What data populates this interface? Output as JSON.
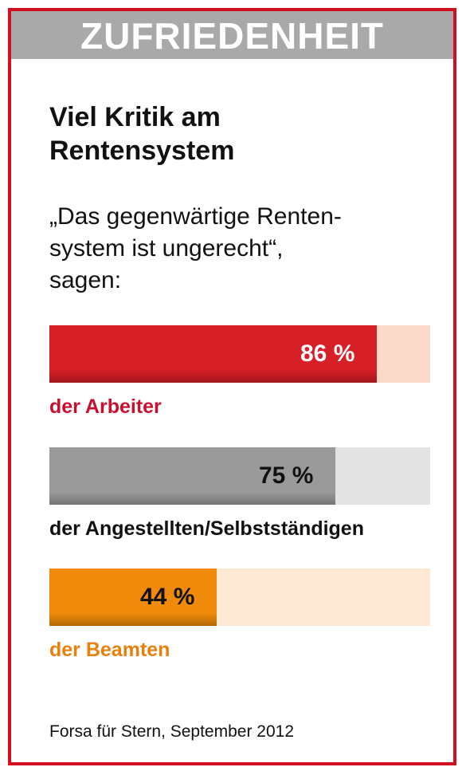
{
  "header": {
    "label": "ZUFRIEDENHEIT"
  },
  "title": "Viel Kritik am\nRentensystem",
  "question": "„Das gegenwärtige Renten-\nsystem ist ungerecht“,\nsagen:",
  "source": "Forsa für Stern, September 2012",
  "colors": {
    "frame": "#d0101f",
    "header_band": "#a9a9a9"
  },
  "chart_data": {
    "type": "bar",
    "orientation": "horizontal",
    "categories": [
      "der Arbeiter",
      "der Angestellten/Selbstständigen",
      "der Beamten"
    ],
    "values": [
      86,
      75,
      44
    ],
    "value_labels": [
      "86 %",
      "75 %",
      "44 %"
    ],
    "ylim": [
      0,
      100
    ],
    "bar_styles": [
      {
        "fill": "#d61f26",
        "track": "#fad9c8",
        "value_color": "#ffffff",
        "label_color": "#c8102e"
      },
      {
        "fill": "#9a9a9a",
        "track": "#e3e3e3",
        "value_color": "#111111",
        "label_color": "#111111"
      },
      {
        "fill": "#f08a0a",
        "track": "#fde9d3",
        "value_color": "#111111",
        "label_color": "#e8800c"
      }
    ]
  }
}
